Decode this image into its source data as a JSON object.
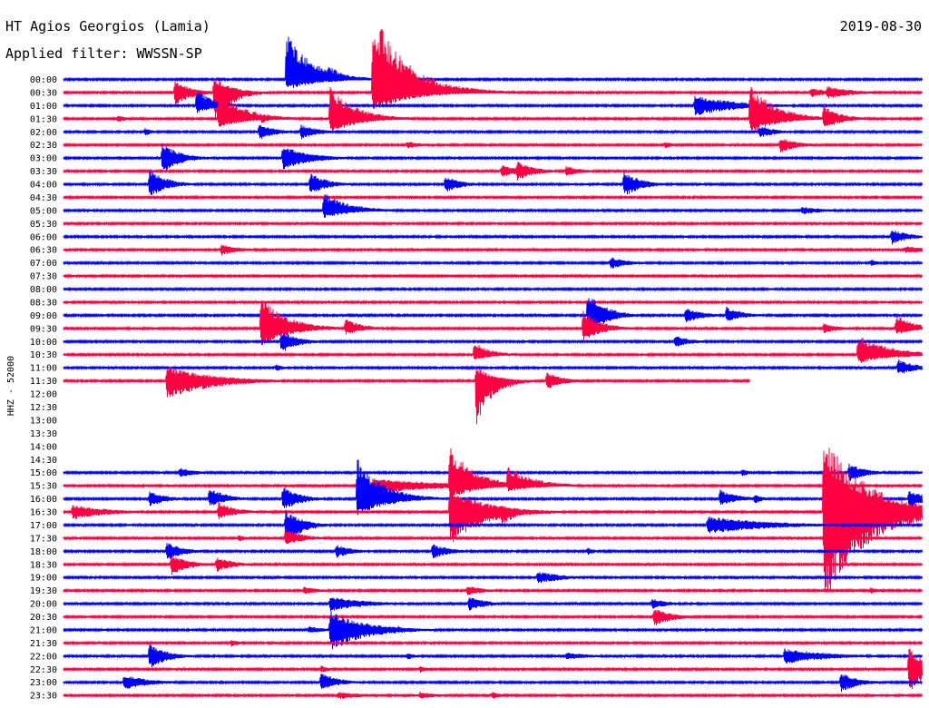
{
  "header": {
    "station": "HT Agios Georgios (Lamia)",
    "filter": "Applied filter: WWSSN-SP",
    "date": "2019-08-30"
  },
  "chart_data": {
    "type": "line",
    "title": "HT Agios Georgios (Lamia)",
    "subtitle": "Applied filter: WWSSN-SP",
    "date": "2019-08-30",
    "ylabel": "HHZ - 52000",
    "colors": {
      "blue": "#0000ff",
      "red": "#ff0040"
    },
    "rows": [
      {
        "label": "00:00",
        "color": "blue"
      },
      {
        "label": "00:30",
        "color": "red"
      },
      {
        "label": "01:00",
        "color": "blue"
      },
      {
        "label": "01:30",
        "color": "red"
      },
      {
        "label": "02:00",
        "color": "blue"
      },
      {
        "label": "02:30",
        "color": "red"
      },
      {
        "label": "03:00",
        "color": "blue"
      },
      {
        "label": "03:30",
        "color": "red"
      },
      {
        "label": "04:00",
        "color": "blue"
      },
      {
        "label": "04:30",
        "color": "red"
      },
      {
        "label": "05:00",
        "color": "blue"
      },
      {
        "label": "05:30",
        "color": "red"
      },
      {
        "label": "06:00",
        "color": "blue"
      },
      {
        "label": "06:30",
        "color": "red"
      },
      {
        "label": "07:00",
        "color": "blue"
      },
      {
        "label": "07:30",
        "color": "red"
      },
      {
        "label": "08:00",
        "color": "blue"
      },
      {
        "label": "08:30",
        "color": "red"
      },
      {
        "label": "09:00",
        "color": "blue"
      },
      {
        "label": "09:30",
        "color": "red"
      },
      {
        "label": "10:00",
        "color": "blue"
      },
      {
        "label": "10:30",
        "color": "red"
      },
      {
        "label": "11:00",
        "color": "blue"
      },
      {
        "label": "11:30",
        "color": "red",
        "end": 0.8
      },
      {
        "label": "12:00",
        "color": "blue",
        "hidden": true
      },
      {
        "label": "12:30",
        "color": "red",
        "hidden": true
      },
      {
        "label": "13:00",
        "color": "blue",
        "hidden": true
      },
      {
        "label": "13:30",
        "color": "red",
        "hidden": true
      },
      {
        "label": "14:00",
        "color": "blue",
        "hidden": true
      },
      {
        "label": "14:30",
        "color": "red",
        "hidden": true
      },
      {
        "label": "15:00",
        "color": "blue"
      },
      {
        "label": "15:30",
        "color": "red"
      },
      {
        "label": "16:00",
        "color": "blue"
      },
      {
        "label": "16:30",
        "color": "red"
      },
      {
        "label": "17:00",
        "color": "blue"
      },
      {
        "label": "17:30",
        "color": "red"
      },
      {
        "label": "18:00",
        "color": "blue"
      },
      {
        "label": "18:30",
        "color": "red"
      },
      {
        "label": "19:00",
        "color": "blue"
      },
      {
        "label": "19:30",
        "color": "red"
      },
      {
        "label": "20:00",
        "color": "blue"
      },
      {
        "label": "20:30",
        "color": "red"
      },
      {
        "label": "21:00",
        "color": "blue"
      },
      {
        "label": "21:30",
        "color": "red"
      },
      {
        "label": "22:00",
        "color": "blue"
      },
      {
        "label": "22:30",
        "color": "red"
      },
      {
        "label": "23:00",
        "color": "blue"
      },
      {
        "label": "23:30",
        "color": "red"
      }
    ],
    "events": [
      {
        "row": 0,
        "x": 0.26,
        "up": 3.7,
        "down": 0.9,
        "decay": 0.03
      },
      {
        "row": 0,
        "x": 0.307,
        "up": 1.2,
        "down": 0.3,
        "decay": 0.02
      },
      {
        "row": 1,
        "x": 0.36,
        "up": 6.4,
        "down": 1.5,
        "decay": 0.04
      },
      {
        "row": 1,
        "x": 0.13,
        "up": 0.9,
        "down": 1.0,
        "decay": 0.02
      },
      {
        "row": 1,
        "x": 0.175,
        "up": 1.3,
        "down": 2.5,
        "decay": 0.02
      },
      {
        "row": 1,
        "x": 0.87,
        "up": 0.4,
        "down": 0.4,
        "decay": 0.02
      },
      {
        "row": 1,
        "x": 0.89,
        "up": 0.5,
        "down": 0.5,
        "decay": 0.03
      },
      {
        "row": 2,
        "x": 0.155,
        "up": 1.3,
        "down": 0.6,
        "decay": 0.02
      },
      {
        "row": 2,
        "x": 0.735,
        "up": 0.8,
        "down": 0.8,
        "decay": 0.05
      },
      {
        "row": 3,
        "x": 0.18,
        "up": 2.3,
        "down": 0.7,
        "decay": 0.03
      },
      {
        "row": 3,
        "x": 0.31,
        "up": 2.5,
        "down": 1.2,
        "decay": 0.03
      },
      {
        "row": 3,
        "x": 0.8,
        "up": 2.7,
        "down": 1.1,
        "decay": 0.03
      },
      {
        "row": 3,
        "x": 0.885,
        "up": 1.1,
        "down": 0.9,
        "decay": 0.02
      },
      {
        "row": 3,
        "x": 0.063,
        "up": 0.3,
        "down": 0.3,
        "decay": 0.01
      },
      {
        "row": 3,
        "x": 0.23,
        "up": 0.4,
        "down": 0.4,
        "decay": 0.01
      },
      {
        "row": 4,
        "x": 0.228,
        "up": 0.6,
        "down": 0.6,
        "decay": 0.02
      },
      {
        "row": 4,
        "x": 0.276,
        "up": 0.6,
        "down": 0.6,
        "decay": 0.02
      },
      {
        "row": 4,
        "x": 0.81,
        "up": 0.5,
        "down": 0.5,
        "decay": 0.02
      },
      {
        "row": 4,
        "x": 0.095,
        "up": 0.3,
        "down": 0.3,
        "decay": 0.01
      },
      {
        "row": 5,
        "x": 0.835,
        "up": 0.6,
        "down": 0.6,
        "decay": 0.02
      },
      {
        "row": 5,
        "x": 0.4,
        "up": 0.3,
        "down": 0.3,
        "decay": 0.02
      },
      {
        "row": 5,
        "x": 0.7,
        "up": 0.3,
        "down": 0.3,
        "decay": 0.01
      },
      {
        "row": 6,
        "x": 0.115,
        "up": 1.2,
        "down": 1.2,
        "decay": 0.02
      },
      {
        "row": 6,
        "x": 0.255,
        "up": 1.0,
        "down": 1.0,
        "decay": 0.03
      },
      {
        "row": 7,
        "x": 0.51,
        "up": 0.5,
        "down": 0.5,
        "decay": 0.02
      },
      {
        "row": 7,
        "x": 0.528,
        "up": 0.8,
        "down": 0.8,
        "decay": 0.02
      },
      {
        "row": 7,
        "x": 0.585,
        "up": 0.4,
        "down": 0.4,
        "decay": 0.02
      },
      {
        "row": 8,
        "x": 0.1,
        "up": 1.2,
        "down": 1.0,
        "decay": 0.02
      },
      {
        "row": 8,
        "x": 0.287,
        "up": 0.9,
        "down": 0.8,
        "decay": 0.02
      },
      {
        "row": 8,
        "x": 0.445,
        "up": 0.6,
        "down": 0.6,
        "decay": 0.02
      },
      {
        "row": 8,
        "x": 0.653,
        "up": 1.0,
        "down": 1.0,
        "decay": 0.02
      },
      {
        "row": 10,
        "x": 0.303,
        "up": 1.4,
        "down": 0.6,
        "decay": 0.03
      },
      {
        "row": 10,
        "x": 0.86,
        "up": 0.3,
        "down": 0.3,
        "decay": 0.03
      },
      {
        "row": 12,
        "x": 0.965,
        "up": 0.6,
        "down": 0.6,
        "decay": 0.02
      },
      {
        "row": 13,
        "x": 0.183,
        "up": 0.5,
        "down": 0.5,
        "decay": 0.02
      },
      {
        "row": 13,
        "x": 0.98,
        "up": 0.3,
        "down": 0.3,
        "decay": 0.03
      },
      {
        "row": 14,
        "x": 0.637,
        "up": 0.5,
        "down": 0.5,
        "decay": 0.02
      },
      {
        "row": 14,
        "x": 0.94,
        "up": 0.3,
        "down": 0.3,
        "decay": 0.01
      },
      {
        "row": 18,
        "x": 0.61,
        "up": 2.0,
        "down": 1.7,
        "decay": 0.02
      },
      {
        "row": 18,
        "x": 0.725,
        "up": 0.6,
        "down": 0.6,
        "decay": 0.02
      },
      {
        "row": 18,
        "x": 0.772,
        "up": 0.7,
        "down": 0.5,
        "decay": 0.02
      },
      {
        "row": 19,
        "x": 0.605,
        "up": 1.5,
        "down": 1.0,
        "decay": 0.02
      },
      {
        "row": 19,
        "x": 0.23,
        "up": 2.5,
        "down": 1.5,
        "decay": 0.03
      },
      {
        "row": 19,
        "x": 0.328,
        "up": 0.8,
        "down": 0.5,
        "decay": 0.02
      },
      {
        "row": 19,
        "x": 0.97,
        "up": 1.2,
        "down": 0.5,
        "decay": 0.02
      },
      {
        "row": 19,
        "x": 0.885,
        "up": 0.4,
        "down": 0.4,
        "decay": 0.02
      },
      {
        "row": 20,
        "x": 0.253,
        "up": 0.8,
        "down": 0.9,
        "decay": 0.02
      },
      {
        "row": 20,
        "x": 0.712,
        "up": 0.5,
        "down": 0.5,
        "decay": 0.02
      },
      {
        "row": 21,
        "x": 0.925,
        "up": 1.5,
        "down": 0.7,
        "decay": 0.04
      },
      {
        "row": 21,
        "x": 0.478,
        "up": 1.0,
        "down": 0.5,
        "decay": 0.02
      },
      {
        "row": 22,
        "x": 0.972,
        "up": 0.7,
        "down": 0.6,
        "decay": 0.02
      },
      {
        "row": 22,
        "x": 0.247,
        "up": 0.3,
        "down": 0.3,
        "decay": 0.01
      },
      {
        "row": 23,
        "x": 0.12,
        "up": 1.2,
        "down": 1.5,
        "decay": 0.05
      },
      {
        "row": 23,
        "x": 0.48,
        "up": 1.2,
        "down": 3.5,
        "decay": 0.02
      },
      {
        "row": 23,
        "x": 0.563,
        "up": 0.7,
        "down": 0.7,
        "decay": 0.02
      },
      {
        "row": 30,
        "x": 0.135,
        "up": 0.4,
        "down": 0.4,
        "decay": 0.02
      },
      {
        "row": 30,
        "x": 0.915,
        "up": 0.7,
        "down": 0.7,
        "decay": 0.02
      },
      {
        "row": 30,
        "x": 0.79,
        "up": 0.3,
        "down": 0.3,
        "decay": 0.01
      },
      {
        "row": 31,
        "x": 0.36,
        "up": 0.6,
        "down": 0.6,
        "decay": 0.08
      },
      {
        "row": 31,
        "x": 0.45,
        "up": 3.0,
        "down": 1.0,
        "decay": 0.03
      },
      {
        "row": 31,
        "x": 0.517,
        "up": 1.6,
        "down": 0.5,
        "decay": 0.03
      },
      {
        "row": 32,
        "x": 0.1,
        "up": 0.6,
        "down": 0.6,
        "decay": 0.02
      },
      {
        "row": 32,
        "x": 0.17,
        "up": 0.9,
        "down": 0.6,
        "decay": 0.02
      },
      {
        "row": 32,
        "x": 0.255,
        "up": 1.0,
        "down": 1.0,
        "decay": 0.02
      },
      {
        "row": 32,
        "x": 0.342,
        "up": 3.2,
        "down": 1.5,
        "decay": 0.03
      },
      {
        "row": 32,
        "x": 0.765,
        "up": 0.8,
        "down": 0.5,
        "decay": 0.02
      },
      {
        "row": 32,
        "x": 0.805,
        "up": 0.4,
        "down": 0.4,
        "decay": 0.01
      },
      {
        "row": 32,
        "x": 0.985,
        "up": 0.7,
        "down": 0.7,
        "decay": 0.02
      },
      {
        "row": 33,
        "x": 0.01,
        "up": 0.6,
        "down": 0.6,
        "decay": 0.04
      },
      {
        "row": 33,
        "x": 0.18,
        "up": 0.8,
        "down": 0.6,
        "decay": 0.02
      },
      {
        "row": 33,
        "x": 0.45,
        "up": 2.0,
        "down": 2.5,
        "decay": 0.04
      },
      {
        "row": 33,
        "x": 0.51,
        "up": 0.6,
        "down": 1.0,
        "decay": 0.02
      },
      {
        "row": 33,
        "x": 0.885,
        "up": 6.0,
        "down": 7.0,
        "decay": 0.05
      },
      {
        "row": 34,
        "x": 0.258,
        "up": 1.2,
        "down": 1.5,
        "decay": 0.02
      },
      {
        "row": 34,
        "x": 0.75,
        "up": 0.7,
        "down": 0.7,
        "decay": 0.07
      },
      {
        "row": 35,
        "x": 0.258,
        "up": 0.8,
        "down": 0.6,
        "decay": 0.02
      },
      {
        "row": 35,
        "x": 0.203,
        "up": 0.3,
        "down": 0.3,
        "decay": 0.01
      },
      {
        "row": 36,
        "x": 0.12,
        "up": 0.7,
        "down": 0.7,
        "decay": 0.02
      },
      {
        "row": 36,
        "x": 0.318,
        "up": 0.5,
        "down": 0.5,
        "decay": 0.02
      },
      {
        "row": 36,
        "x": 0.43,
        "up": 0.6,
        "down": 0.6,
        "decay": 0.02
      },
      {
        "row": 36,
        "x": 0.61,
        "up": 0.3,
        "down": 0.3,
        "decay": 0.01
      },
      {
        "row": 37,
        "x": 0.125,
        "up": 0.8,
        "down": 0.9,
        "decay": 0.02
      },
      {
        "row": 37,
        "x": 0.178,
        "up": 0.6,
        "down": 0.6,
        "decay": 0.02
      },
      {
        "row": 37,
        "x": 0.15,
        "up": 0.3,
        "down": 0.3,
        "decay": 0.01
      },
      {
        "row": 38,
        "x": 0.552,
        "up": 0.5,
        "down": 0.5,
        "decay": 0.03
      },
      {
        "row": 39,
        "x": 0.28,
        "up": 0.3,
        "down": 0.3,
        "decay": 0.02
      },
      {
        "row": 39,
        "x": 0.47,
        "up": 0.4,
        "down": 0.4,
        "decay": 0.02
      },
      {
        "row": 39,
        "x": 0.94,
        "up": 0.3,
        "down": 0.3,
        "decay": 0.01
      },
      {
        "row": 40,
        "x": 0.31,
        "up": 0.6,
        "down": 0.6,
        "decay": 0.04
      },
      {
        "row": 40,
        "x": 0.472,
        "up": 0.6,
        "down": 0.6,
        "decay": 0.02
      },
      {
        "row": 40,
        "x": 0.686,
        "up": 0.4,
        "down": 0.4,
        "decay": 0.02
      },
      {
        "row": 41,
        "x": 0.688,
        "up": 0.7,
        "down": 0.8,
        "decay": 0.02
      },
      {
        "row": 42,
        "x": 0.31,
        "up": 1.5,
        "down": 1.7,
        "decay": 0.04
      },
      {
        "row": 42,
        "x": 0.285,
        "up": 0.3,
        "down": 0.3,
        "decay": 0.02
      },
      {
        "row": 42,
        "x": 0.39,
        "up": 0.3,
        "down": 0.3,
        "decay": 0.01
      },
      {
        "row": 43,
        "x": 0.195,
        "up": 0.3,
        "down": 0.3,
        "decay": 0.01
      },
      {
        "row": 44,
        "x": 0.1,
        "up": 1.0,
        "down": 1.0,
        "decay": 0.02
      },
      {
        "row": 44,
        "x": 0.4,
        "up": 0.3,
        "down": 0.3,
        "decay": 0.01
      },
      {
        "row": 44,
        "x": 0.585,
        "up": 0.3,
        "down": 0.3,
        "decay": 0.03
      },
      {
        "row": 44,
        "x": 0.84,
        "up": 0.6,
        "down": 0.6,
        "decay": 0.05
      },
      {
        "row": 45,
        "x": 0.3,
        "up": 0.3,
        "down": 0.3,
        "decay": 0.01
      },
      {
        "row": 45,
        "x": 0.415,
        "up": 0.3,
        "down": 0.3,
        "decay": 0.01
      },
      {
        "row": 45,
        "x": 0.985,
        "up": 1.8,
        "down": 1.8,
        "decay": 0.02
      },
      {
        "row": 46,
        "x": 0.07,
        "up": 0.6,
        "down": 0.6,
        "decay": 0.03
      },
      {
        "row": 46,
        "x": 0.3,
        "up": 0.8,
        "down": 0.6,
        "decay": 0.02
      },
      {
        "row": 46,
        "x": 0.905,
        "up": 0.8,
        "down": 0.8,
        "decay": 0.02
      },
      {
        "row": 47,
        "x": 0.32,
        "up": 0.3,
        "down": 0.3,
        "decay": 0.03
      },
      {
        "row": 47,
        "x": 0.415,
        "up": 0.3,
        "down": 0.3,
        "decay": 0.02
      },
      {
        "row": 47,
        "x": 0.5,
        "up": 0.3,
        "down": 0.3,
        "decay": 0.01
      }
    ]
  }
}
